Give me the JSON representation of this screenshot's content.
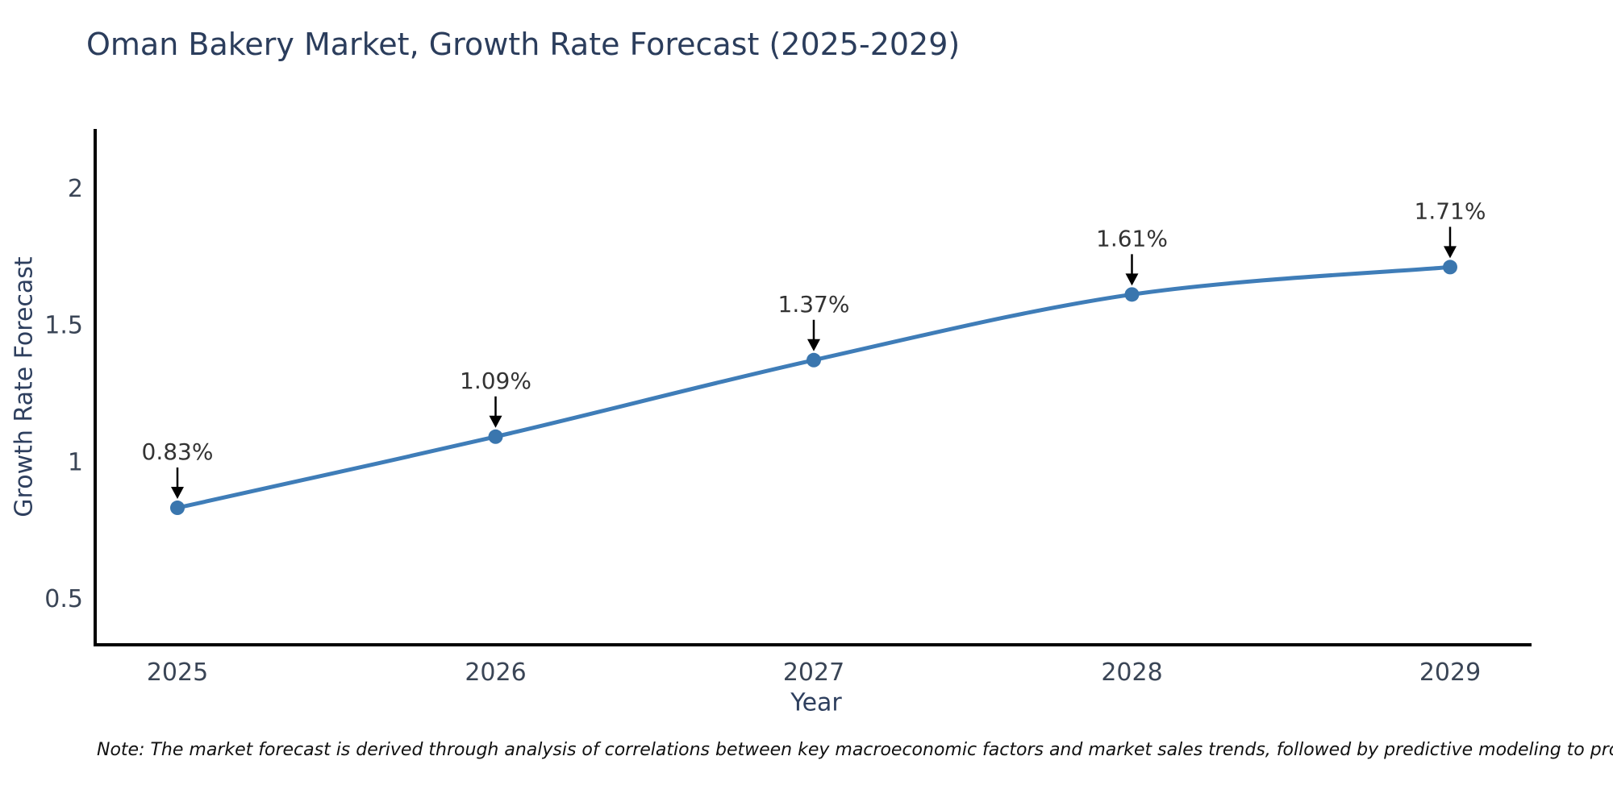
{
  "title": "Oman Bakery Market, Growth Rate Forecast (2025-2029)",
  "note": "Note: The market forecast is derived through analysis of correlations between key macroeconomic factors and market sales trends, followed by predictive modeling to project future sales",
  "chart_data": {
    "type": "line",
    "title": "Oman Bakery Market, Growth Rate Forecast (2025-2029)",
    "xlabel": "Year",
    "ylabel": "Growth Rate Forecast",
    "categories": [
      "2025",
      "2026",
      "2027",
      "2028",
      "2029"
    ],
    "values": [
      0.83,
      1.09,
      1.37,
      1.61,
      1.71
    ],
    "point_labels": [
      "0.83%",
      "1.09%",
      "1.37%",
      "1.61%",
      "1.71%"
    ],
    "yticks": [
      0.5,
      1,
      1.5,
      2
    ],
    "ylim": [
      0.33,
      2.22
    ],
    "grid": false,
    "legend": "none",
    "line_shape": "spline",
    "line_color": "#3f7db8",
    "marker_color": "#3a76ae",
    "arrow_color": "#000000",
    "axis_color": "#000000",
    "tick_color": "#3a4556",
    "annotation_color": "#333333"
  }
}
